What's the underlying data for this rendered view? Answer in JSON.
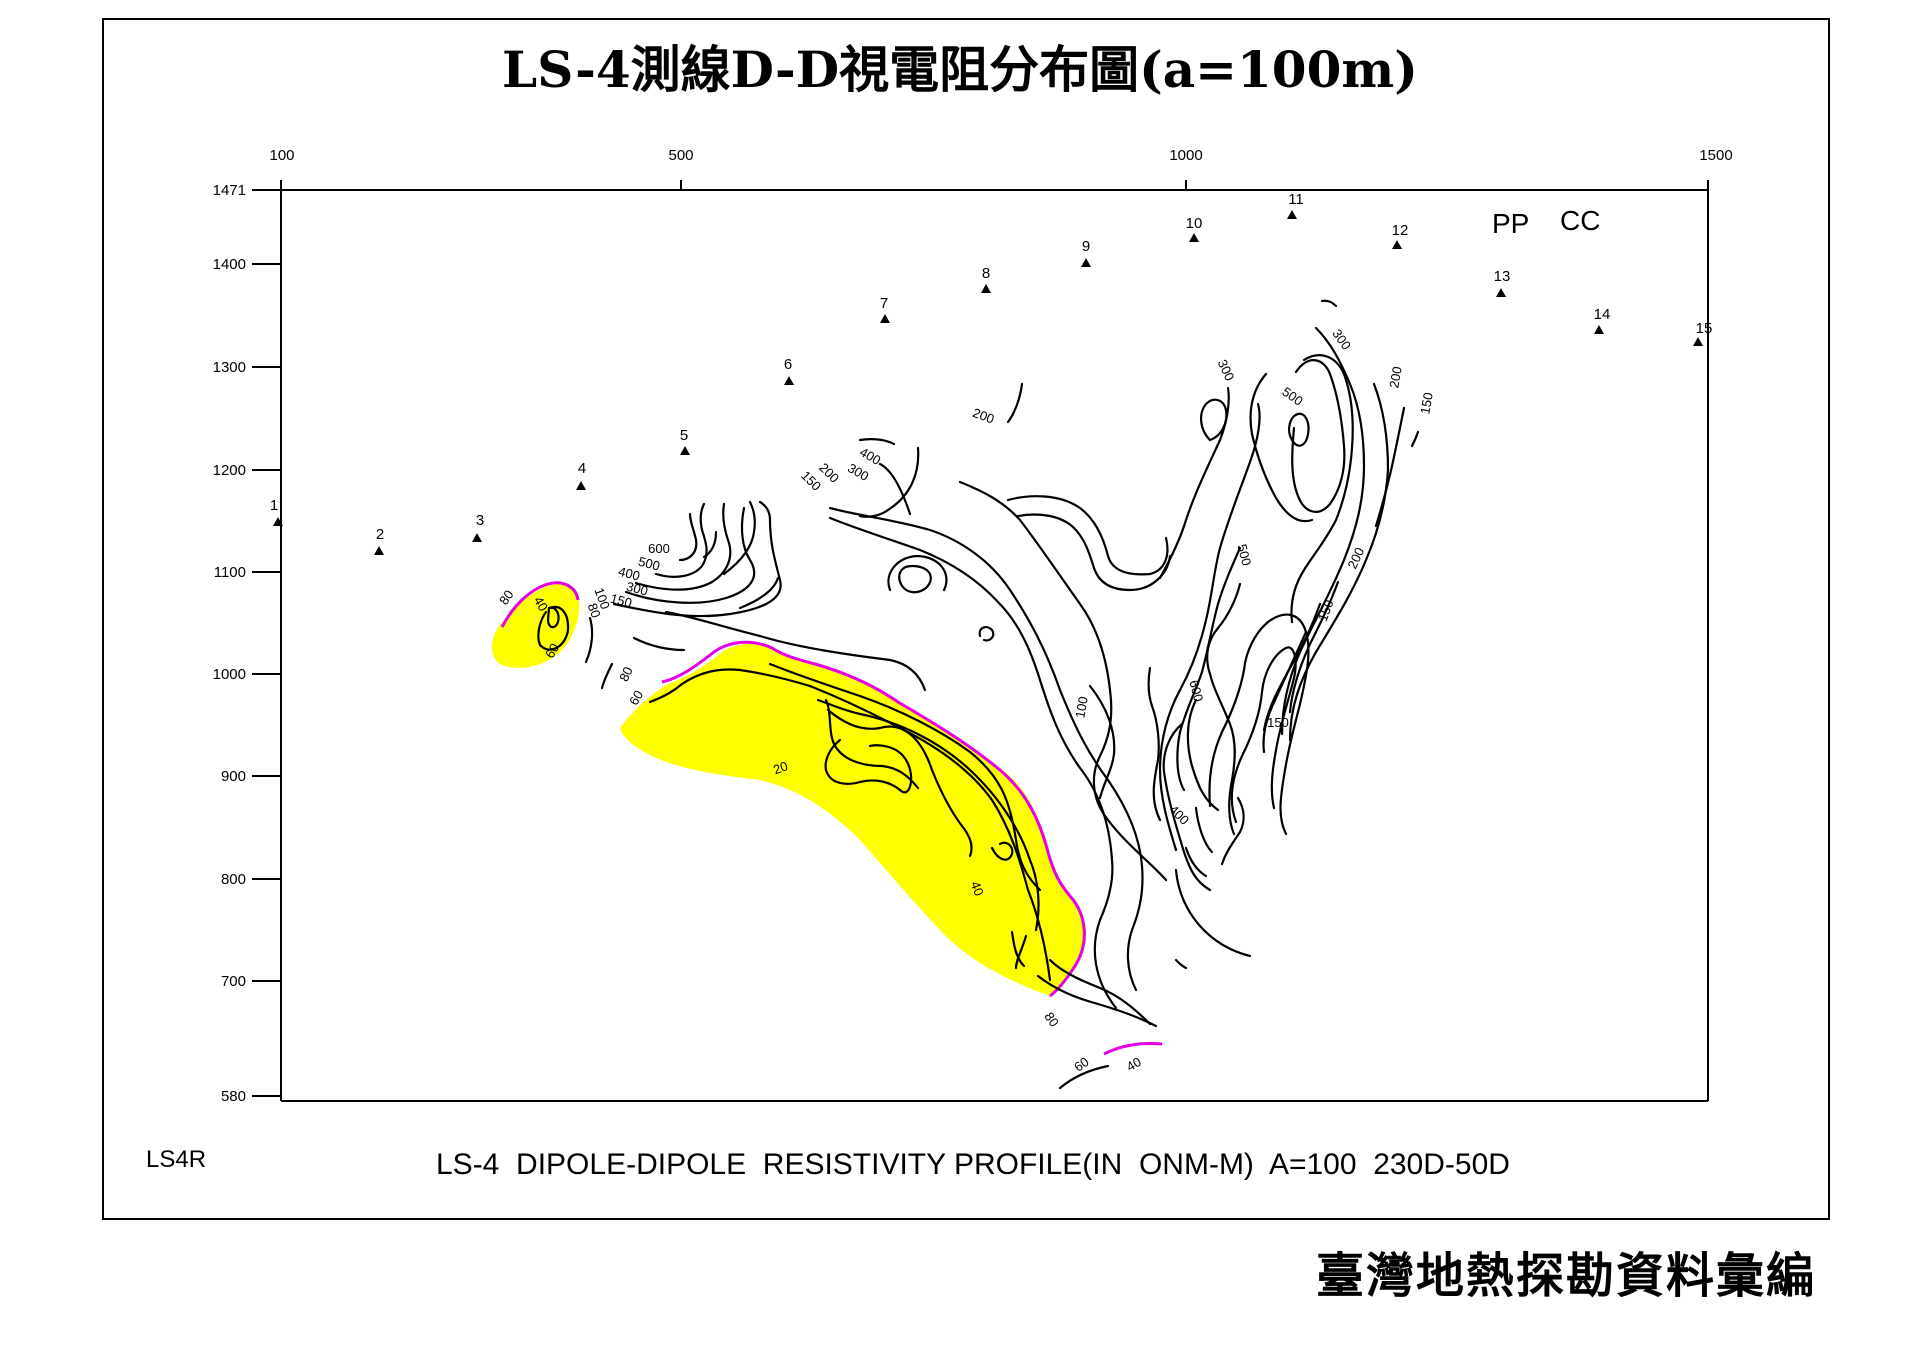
{
  "title": "LS-4測線D-D視電阻分布圖(a=100m)",
  "profile_id": "LS4R",
  "caption": "LS-4  DIPOLE-DIPOLE  RESISTIVITY PROFILE(IN  ONM-M)  A=100  230D-50D",
  "publisher": "臺灣地熱探勘資料彙編",
  "legend": {
    "pp": "PP",
    "cc": "CC"
  },
  "colors": {
    "anomaly_fill": "#ffff00",
    "anomaly_outline": "#e600e6",
    "line": "#000000"
  },
  "axes": {
    "x_ticks": [
      "100",
      "500",
      "1000",
      "1500"
    ],
    "y_ticks": [
      "1471",
      "1400",
      "1300",
      "1200",
      "1100",
      "1000",
      "900",
      "800",
      "700",
      "580"
    ]
  },
  "stations": [
    "1",
    "2",
    "3",
    "4",
    "5",
    "6",
    "7",
    "8",
    "9",
    "10",
    "11",
    "12",
    "13",
    "14",
    "15"
  ],
  "contour_labels": [
    "80",
    "40",
    "60",
    "100",
    "80",
    "150",
    "300",
    "400",
    "500",
    "600",
    "80",
    "60",
    "20",
    "40",
    "80",
    "60",
    "40",
    "150",
    "200",
    "300",
    "400",
    "200",
    "100",
    "400",
    "600",
    "500",
    "500",
    "300",
    "300",
    "200",
    "150",
    "200",
    "150",
    "150"
  ]
}
